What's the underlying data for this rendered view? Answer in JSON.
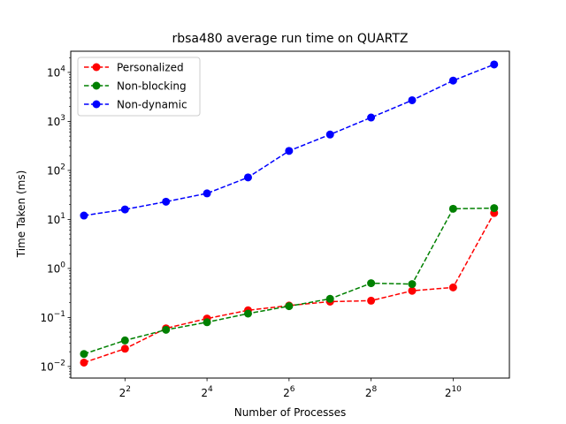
{
  "chart_data": {
    "type": "line",
    "title": "rbsa480 average run time on QUARTZ",
    "xlabel": "Number of Processes",
    "ylabel": "Time Taken (ms)",
    "x_scale": "log2",
    "y_scale": "log10",
    "x": [
      2,
      4,
      8,
      16,
      32,
      64,
      128,
      256,
      512,
      1024,
      2048
    ],
    "xlim": [
      1.6,
      2650
    ],
    "ylim": [
      0.0058,
      27000
    ],
    "x_ticks": [
      {
        "value": 4,
        "base": "2",
        "exp": "2"
      },
      {
        "value": 16,
        "base": "2",
        "exp": "4"
      },
      {
        "value": 64,
        "base": "2",
        "exp": "6"
      },
      {
        "value": 256,
        "base": "2",
        "exp": "8"
      },
      {
        "value": 1024,
        "base": "2",
        "exp": "10"
      }
    ],
    "y_ticks": [
      {
        "value": 0.01,
        "base": "10",
        "exp": "−2"
      },
      {
        "value": 0.1,
        "base": "10",
        "exp": "−1"
      },
      {
        "value": 1,
        "base": "10",
        "exp": "0"
      },
      {
        "value": 10,
        "base": "10",
        "exp": "1"
      },
      {
        "value": 100,
        "base": "10",
        "exp": "2"
      },
      {
        "value": 1000,
        "base": "10",
        "exp": "3"
      },
      {
        "value": 10000,
        "base": "10",
        "exp": "4"
      }
    ],
    "grid": false,
    "legend_position": "top-left",
    "series": [
      {
        "name": "Personalized",
        "color": "#ff0000",
        "values": [
          0.012,
          0.023,
          0.06,
          0.095,
          0.14,
          0.175,
          0.21,
          0.22,
          0.35,
          0.41,
          13.5
        ]
      },
      {
        "name": "Non-blocking",
        "color": "#008000",
        "values": [
          0.018,
          0.034,
          0.056,
          0.08,
          0.12,
          0.17,
          0.24,
          0.5,
          0.48,
          16.5,
          17.0
        ]
      },
      {
        "name": "Non-dynamic",
        "color": "#0000ff",
        "values": [
          12,
          16,
          23,
          34,
          72,
          250,
          540,
          1200,
          2700,
          6800,
          14500
        ]
      }
    ]
  }
}
